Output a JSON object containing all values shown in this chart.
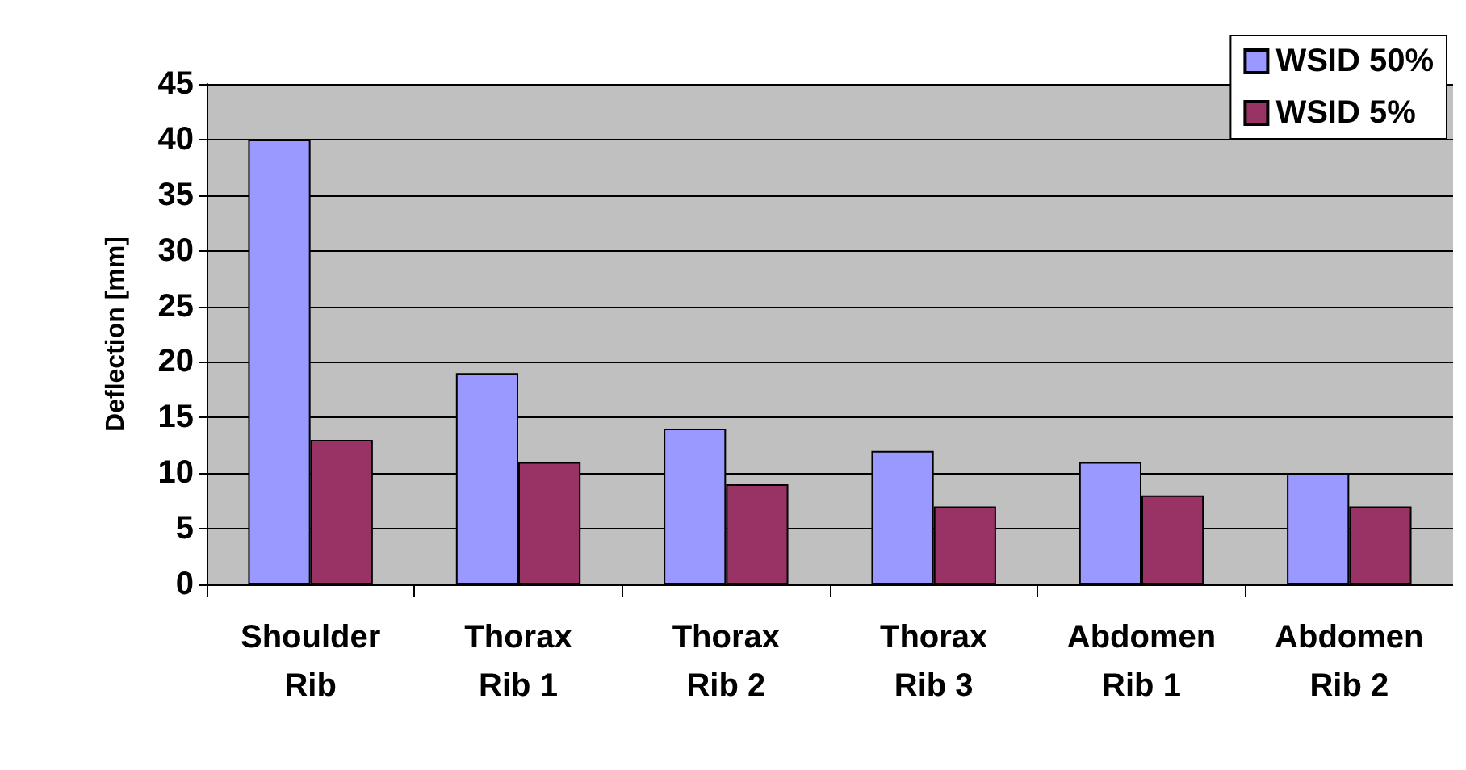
{
  "chart_data": {
    "type": "bar",
    "ylabel": "Deflection [mm]",
    "categories": [
      "Shoulder\nRib",
      "Thorax\nRib 1",
      "Thorax\nRib 2",
      "Thorax\nRib 3",
      "Abdomen\nRib 1",
      "Abdomen\nRib 2"
    ],
    "series": [
      {
        "name": "WSID 50%",
        "color": "#9999ff",
        "values": [
          40,
          19,
          14,
          12,
          11,
          10
        ]
      },
      {
        "name": "WSID 5%",
        "color": "#993366",
        "values": [
          13,
          11,
          9,
          7,
          8,
          7
        ]
      }
    ],
    "ylim": [
      0,
      45
    ],
    "yticks": [
      0,
      5,
      10,
      15,
      20,
      25,
      30,
      35,
      40,
      45
    ],
    "grid": "y",
    "legend": "top right"
  }
}
